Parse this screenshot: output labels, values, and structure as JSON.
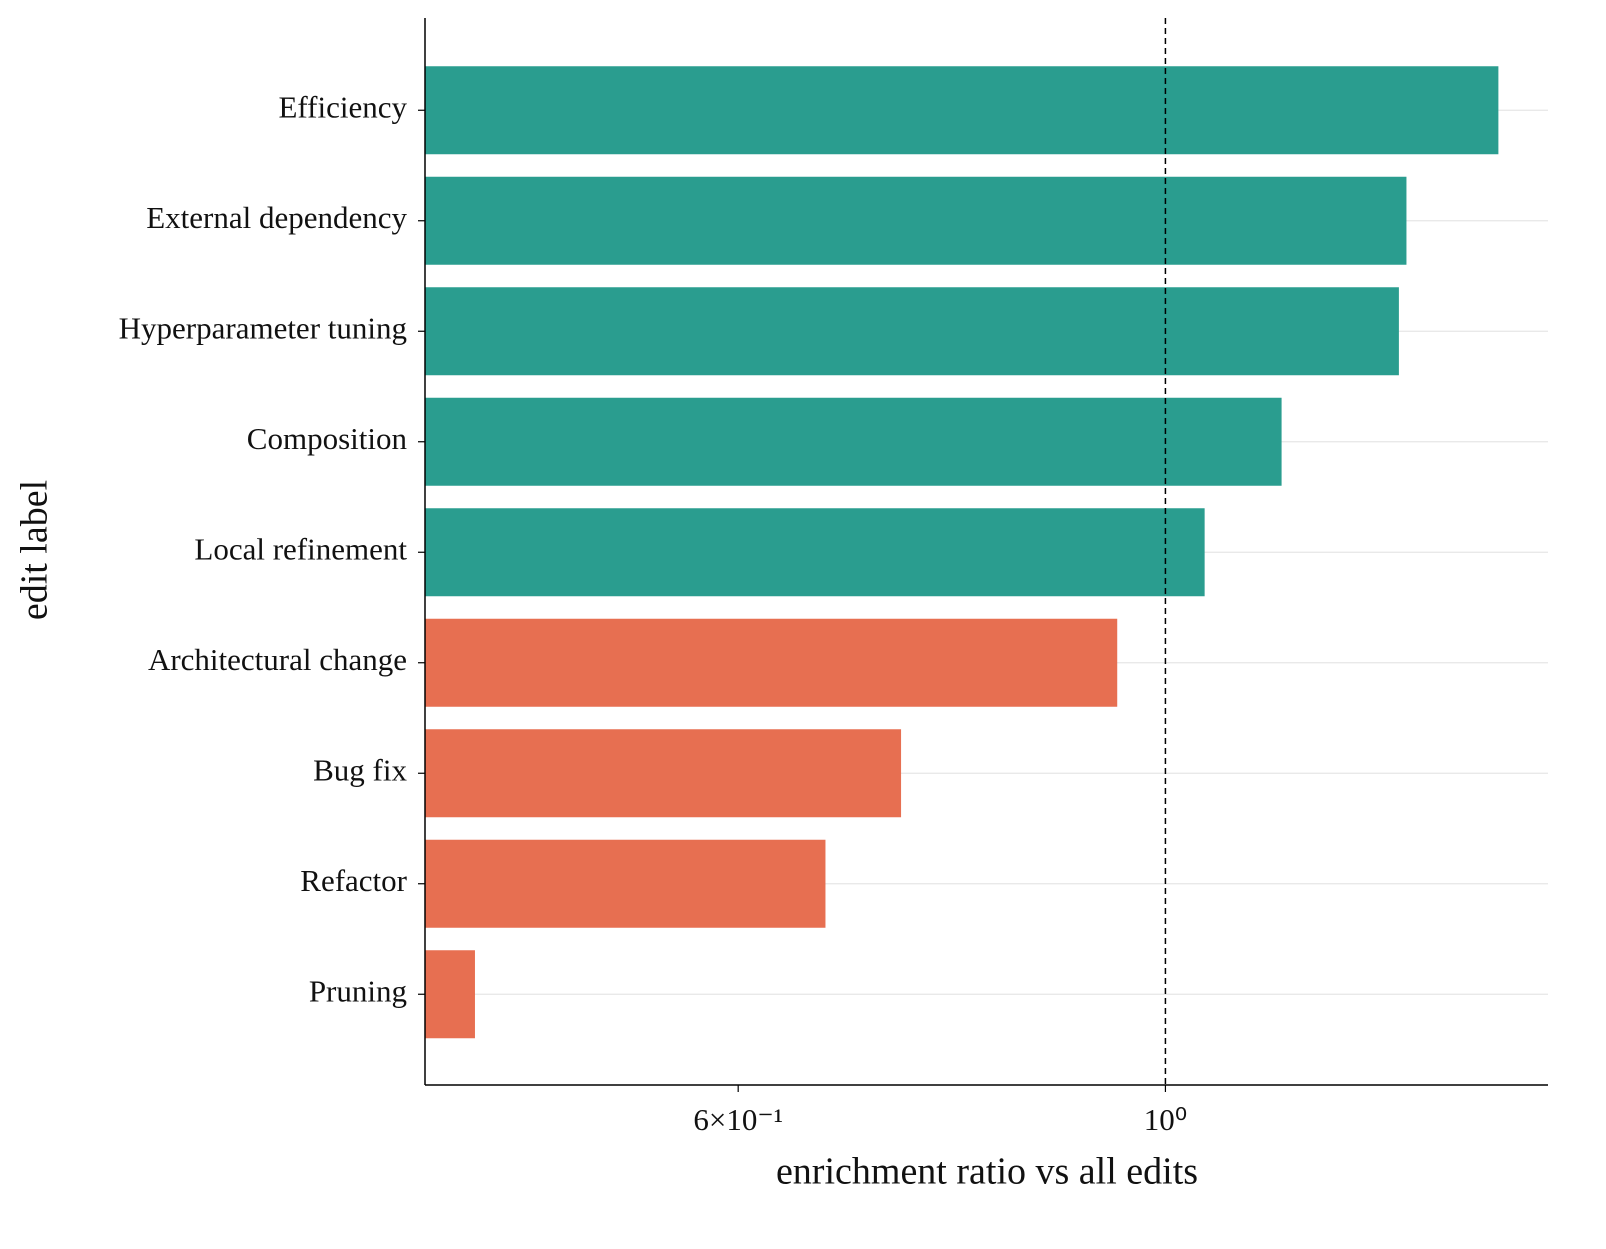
{
  "chart_data": {
    "type": "bar",
    "orientation": "horizontal",
    "x_label": "enrichment ratio vs all edits",
    "y_label": "edit label",
    "categories": [
      "Efficiency",
      "External dependency",
      "Hyperparameter tuning",
      "Composition",
      "Local refinement",
      "Architectural change",
      "Bug fix",
      "Refactor",
      "Pruning"
    ],
    "values": [
      1.489,
      1.334,
      1.322,
      1.149,
      1.048,
      0.944,
      0.729,
      0.666,
      0.438
    ],
    "colors": [
      "#2a9d8f",
      "#2a9d8f",
      "#2a9d8f",
      "#2a9d8f",
      "#2a9d8f",
      "#e76f51",
      "#e76f51",
      "#e76f51",
      "#e76f51"
    ],
    "x_scale": "log",
    "xlim": [
      0.4126,
      1.58
    ],
    "xticks": [
      {
        "value": 0.6,
        "label": "6×10⁻¹"
      },
      {
        "value": 1,
        "label": "10⁰"
      }
    ],
    "reference_line": 1,
    "grid": true
  }
}
